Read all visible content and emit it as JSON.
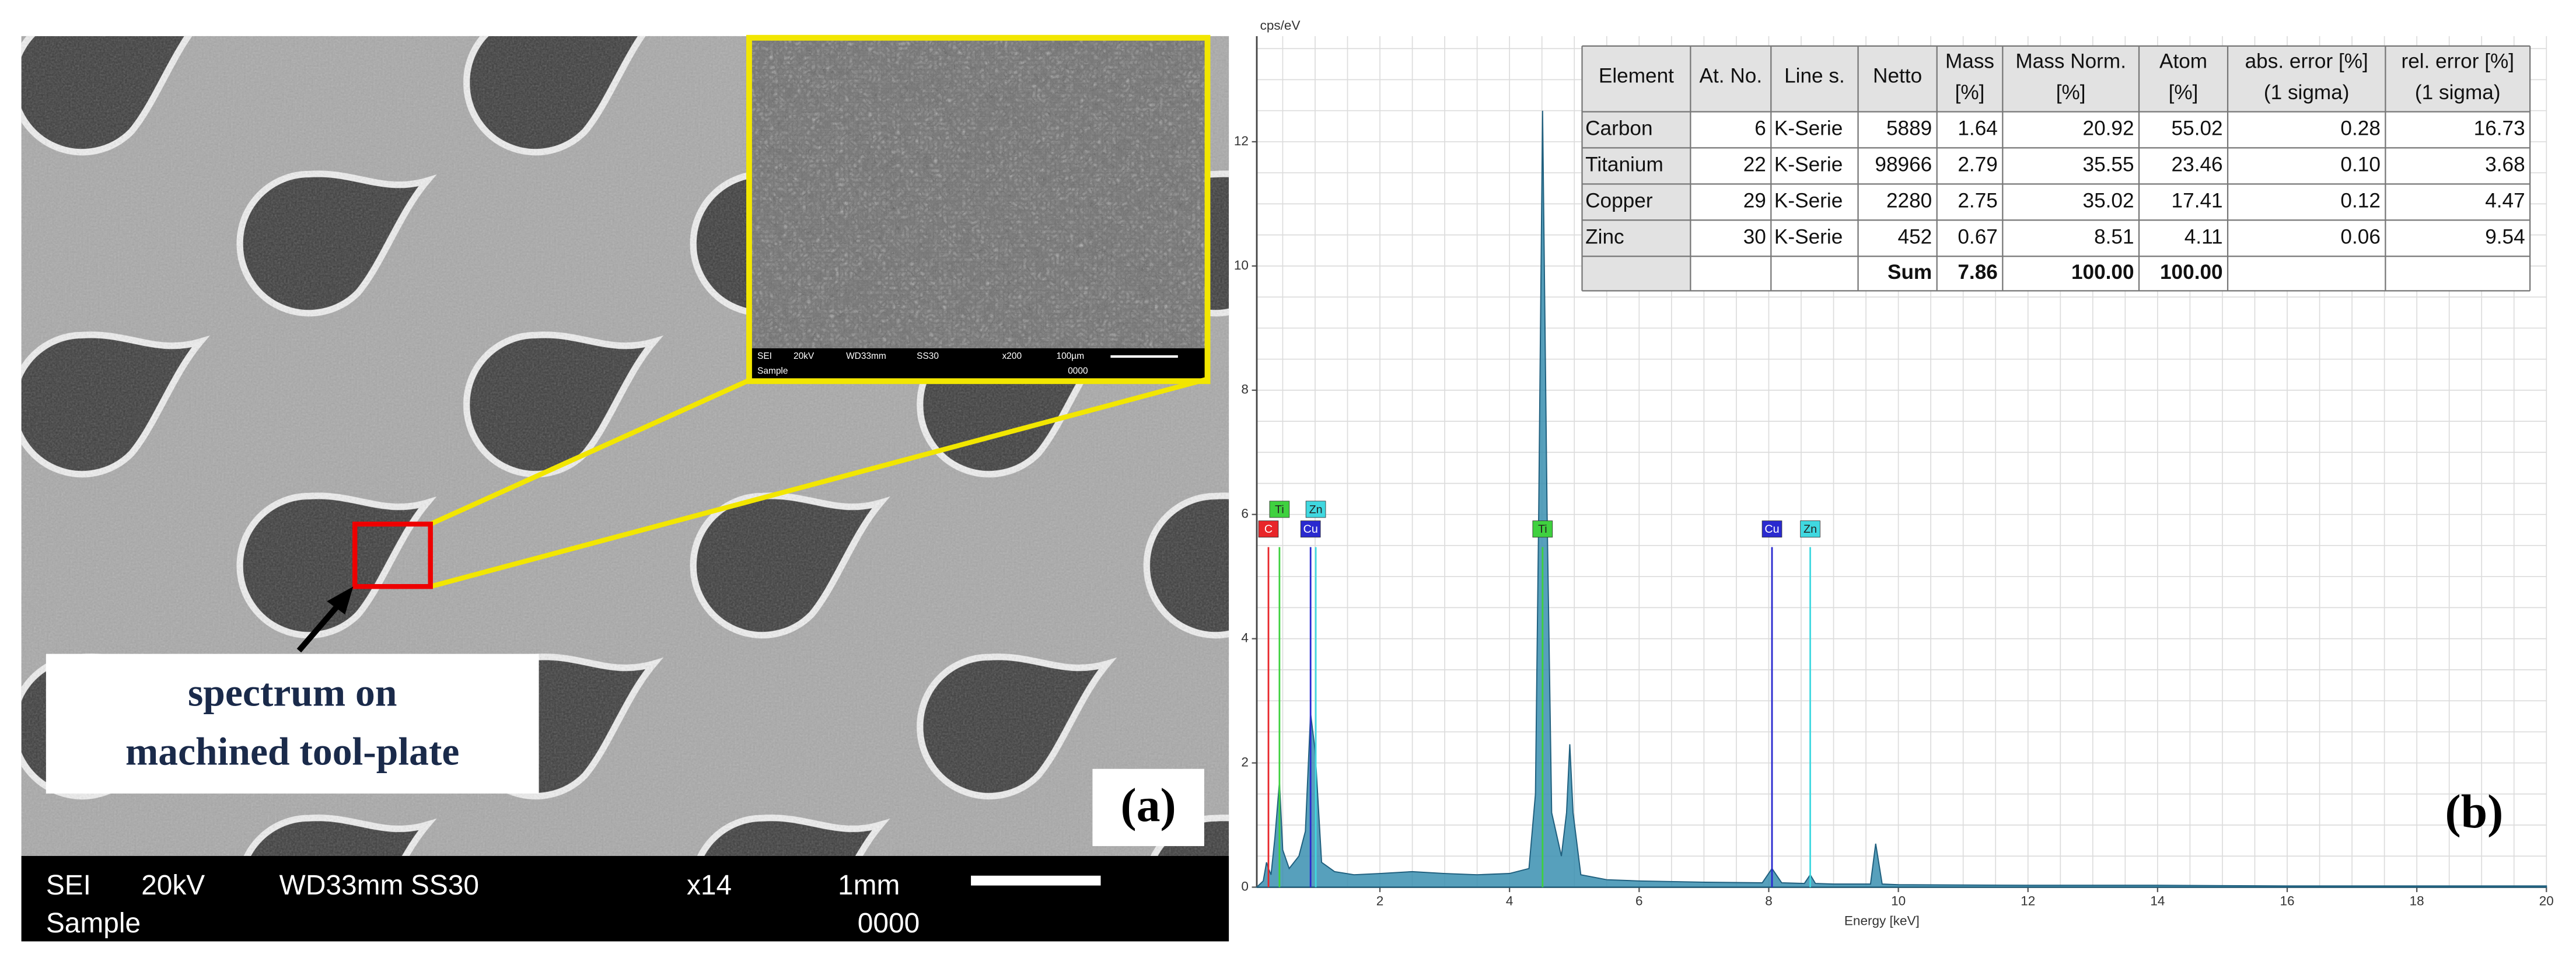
{
  "panel_a": {
    "label": "(a)",
    "annotation": [
      "spectrum on",
      "machined tool-plate"
    ],
    "info_bar": [
      "SEI",
      "20kV",
      "WD33mm",
      "SS30",
      "x14",
      "1mm",
      "Sample",
      "0000"
    ],
    "inset_info": [
      "SEI",
      "20kV",
      "WD33mm",
      "SS30",
      "x200",
      "100µm",
      "Sample",
      "0000"
    ]
  },
  "panel_b": {
    "label": "(b)"
  },
  "table": {
    "header": [
      [
        "Element"
      ],
      [
        "At. No."
      ],
      [
        "Line s."
      ],
      [
        "Netto"
      ],
      [
        "Mass",
        "[%]"
      ],
      [
        "Mass Norm.",
        "[%]"
      ],
      [
        "Atom",
        "[%]"
      ],
      [
        "abs. error [%]",
        "(1 sigma)"
      ],
      [
        "rel. error [%]",
        "(1 sigma)"
      ]
    ],
    "rows": [
      [
        "Carbon",
        "6",
        "K-Serie",
        "5889",
        "1.64",
        "20.92",
        "55.02",
        "0.28",
        "16.73"
      ],
      [
        "Titanium",
        "22",
        "K-Serie",
        "98966",
        "2.79",
        "35.55",
        "23.46",
        "0.10",
        "3.68"
      ],
      [
        "Copper",
        "29",
        "K-Serie",
        "2280",
        "2.75",
        "35.02",
        "17.41",
        "0.12",
        "4.47"
      ],
      [
        "Zinc",
        "30",
        "K-Serie",
        "452",
        "0.67",
        "8.51",
        "4.11",
        "0.06",
        "9.54"
      ],
      [
        null,
        null,
        null,
        "Sum",
        "7.86",
        "100.00",
        "100.00",
        null,
        null
      ]
    ]
  },
  "chart_data": {
    "type": "area",
    "y_label": "cps/eV",
    "x_label": "Energy [keV]",
    "xlim": [
      0.1,
      20
    ],
    "ylim": [
      0,
      13.7
    ],
    "xticks": [
      2,
      4,
      6,
      8,
      10,
      12,
      14,
      16,
      18,
      20
    ],
    "yticks": [
      0,
      2,
      4,
      6,
      8,
      10,
      12
    ],
    "grid": true,
    "grid_step": 0.5,
    "series": [
      {
        "color": "#3a8fb0",
        "x": [
          0.1,
          0.2,
          0.25,
          0.28,
          0.32,
          0.38,
          0.45,
          0.5,
          0.6,
          0.75,
          0.85,
          0.93,
          1.0,
          1.1,
          1.3,
          1.6,
          2,
          2.5,
          3,
          3.5,
          4,
          4.3,
          4.4,
          4.45,
          4.51,
          4.58,
          4.65,
          4.8,
          4.88,
          4.93,
          4.98,
          5.1,
          5.5,
          6,
          7,
          7.9,
          8.05,
          8.2,
          8.55,
          8.64,
          8.72,
          9,
          9.57,
          9.65,
          9.75,
          10,
          12,
          14,
          16,
          18,
          20
        ],
        "values": [
          0,
          0.1,
          0.4,
          0.3,
          0.2,
          0.8,
          1.7,
          0.6,
          0.3,
          0.5,
          0.9,
          2.8,
          2.2,
          0.4,
          0.25,
          0.2,
          0.22,
          0.25,
          0.22,
          0.2,
          0.22,
          0.3,
          1.5,
          6,
          12.5,
          6,
          1.2,
          0.5,
          1.2,
          2.3,
          1.2,
          0.2,
          0.12,
          0.1,
          0.08,
          0.07,
          0.3,
          0.07,
          0.06,
          0.2,
          0.06,
          0.05,
          0.05,
          0.7,
          0.05,
          0.04,
          0.03,
          0.03,
          0.02,
          0.02,
          0.02
        ]
      }
    ],
    "markers": [
      {
        "label": "C",
        "energy": 0.28,
        "color": "#e8262a"
      },
      {
        "label": "Ti",
        "energy": 0.45,
        "color": "#3fd13f"
      },
      {
        "label": "Cu",
        "energy": 0.93,
        "color": "#2a2acf"
      },
      {
        "label": "Zn",
        "energy": 1.01,
        "color": "#40d8e0"
      },
      {
        "label": "Ti",
        "energy": 4.51,
        "color": "#3fd13f"
      },
      {
        "label": "Cu",
        "energy": 8.05,
        "color": "#2a2acf"
      },
      {
        "label": "Zn",
        "energy": 8.64,
        "color": "#40d8e0"
      }
    ]
  }
}
